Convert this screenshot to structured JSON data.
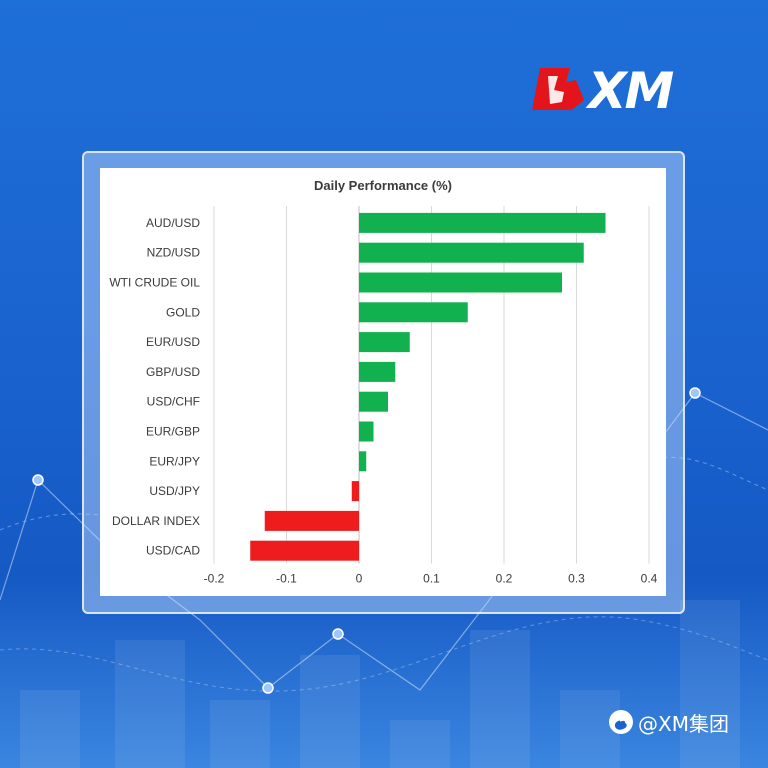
{
  "brand": {
    "logo_text": "XM",
    "social_handle": "@XM集团"
  },
  "colors": {
    "positive": "#12b14f",
    "negative": "#ee1c1c",
    "grid": "#d9d9d9",
    "text": "#3b3b3b"
  },
  "icons": {
    "social": "weibo-icon"
  },
  "chart_data": {
    "type": "bar",
    "orientation": "horizontal",
    "title": "Daily Performance (%)",
    "categories": [
      "AUD/USD",
      "NZD/USD",
      "WTI CRUDE OIL",
      "GOLD",
      "EUR/USD",
      "GBP/USD",
      "USD/CHF",
      "EUR/GBP",
      "EUR/JPY",
      "USD/JPY",
      "DOLLAR INDEX",
      "USD/CAD"
    ],
    "values": [
      0.34,
      0.31,
      0.28,
      0.15,
      0.07,
      0.05,
      0.04,
      0.02,
      0.01,
      -0.01,
      -0.13,
      -0.15
    ],
    "xlim": [
      -0.2,
      0.4
    ],
    "xticks": [
      -0.2,
      -0.1,
      0,
      0.1,
      0.2,
      0.3,
      0.4
    ],
    "xtick_labels": [
      "-0.2",
      "-0.1",
      "0",
      "0.1",
      "0.2",
      "0.3",
      "0.4"
    ],
    "grid": true,
    "legend": "none"
  }
}
